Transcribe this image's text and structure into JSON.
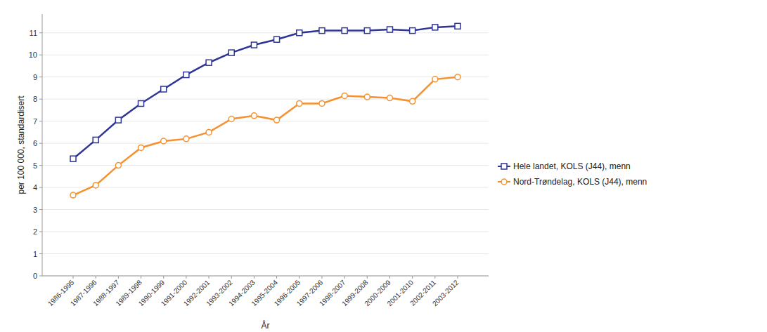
{
  "chart_data": {
    "type": "line",
    "y_label": "per 100 000, standardisert",
    "x_label": "År",
    "categories": [
      "1986-1995",
      "1987-1996",
      "1988-1997",
      "1989-1998",
      "1990-1999",
      "1991-2000",
      "1992-2001",
      "1993-2002",
      "1994-2003",
      "1995-2004",
      "1996-2005",
      "1997-2006",
      "1998-2007",
      "1999-2008",
      "2000-2009",
      "2001-2010",
      "2002-2011",
      "2003-2012"
    ],
    "series": [
      {
        "name": "Hele landet, KOLS (J44), menn",
        "color": "#2e3595",
        "marker": "square",
        "values": [
          5.3,
          6.15,
          7.05,
          7.8,
          8.45,
          9.1,
          9.65,
          10.1,
          10.45,
          10.7,
          11.0,
          11.1,
          11.1,
          11.1,
          11.15,
          11.1,
          11.25,
          11.3
        ]
      },
      {
        "name": "Nord-Trøndelag, KOLS (J44), menn",
        "color": "#f5912e",
        "marker": "circle",
        "values": [
          3.65,
          4.1,
          5.0,
          5.8,
          6.1,
          6.2,
          6.5,
          7.1,
          7.25,
          7.05,
          7.8,
          7.8,
          8.15,
          8.1,
          8.05,
          7.9,
          8.9,
          9.0
        ]
      }
    ],
    "ylim": [
      0,
      11.85
    ],
    "yticks": [
      0,
      1,
      2,
      3,
      4,
      5,
      6,
      7,
      8,
      9,
      10,
      11
    ],
    "grid": true,
    "legend": "right"
  }
}
